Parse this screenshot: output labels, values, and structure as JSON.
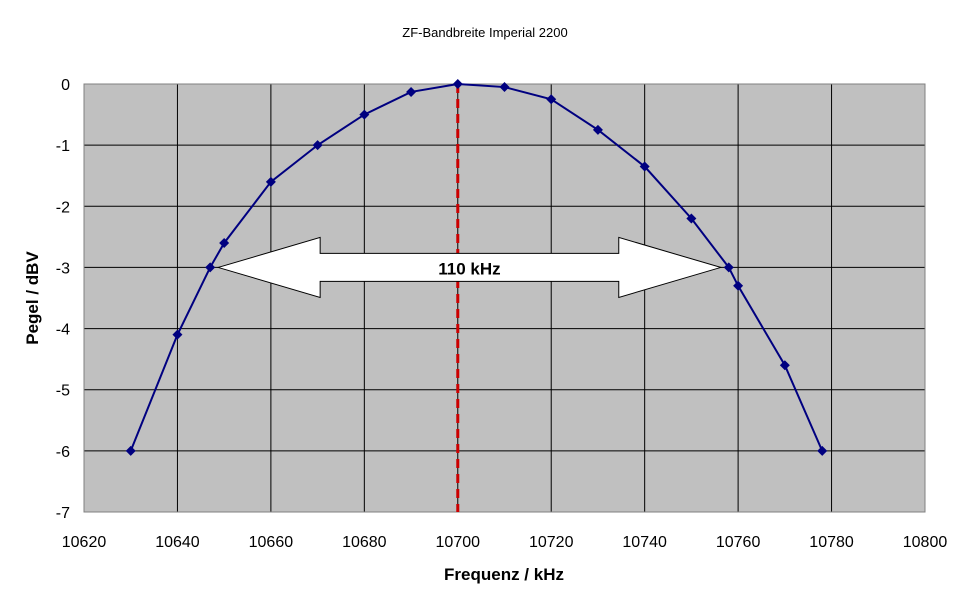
{
  "chart_data": {
    "type": "line",
    "title": "ZF-Bandbreite Imperial 2200",
    "xlabel": "Frequenz / kHz",
    "ylabel": "Pegel / dBV",
    "xlim": [
      10620,
      10800
    ],
    "ylim": [
      -7,
      0
    ],
    "x_ticks": [
      10620,
      10640,
      10660,
      10680,
      10700,
      10720,
      10740,
      10760,
      10780,
      10800
    ],
    "y_ticks": [
      0,
      -1,
      -2,
      -3,
      -4,
      -5,
      -6,
      -7
    ],
    "grid": true,
    "legend": "none",
    "series": [
      {
        "x": [
          10630,
          10640,
          10647,
          10650,
          10660,
          10670,
          10680,
          10690,
          10700,
          10710,
          10720,
          10730,
          10740,
          10750,
          10758,
          10760,
          10770,
          10778
        ],
        "y": [
          -6,
          -4.1,
          -3,
          -2.6,
          -1.6,
          -1,
          -0.5,
          -0.13,
          0,
          -0.05,
          -0.25,
          -0.75,
          -1.35,
          -2.2,
          -3,
          -3.3,
          -4.6,
          -6
        ],
        "color": "#000080"
      }
    ],
    "vertical_line": {
      "x": 10700,
      "color": "#cc0000",
      "style": "dashed"
    },
    "annotation": {
      "text": "110 kHz",
      "type": "double-arrow",
      "x_start": 10647,
      "x_end": 10758,
      "y": -3
    },
    "colors": {
      "plot_background": "#c0c0c0",
      "grid": "#000000",
      "series": "#000080",
      "marker": "#000080"
    }
  }
}
